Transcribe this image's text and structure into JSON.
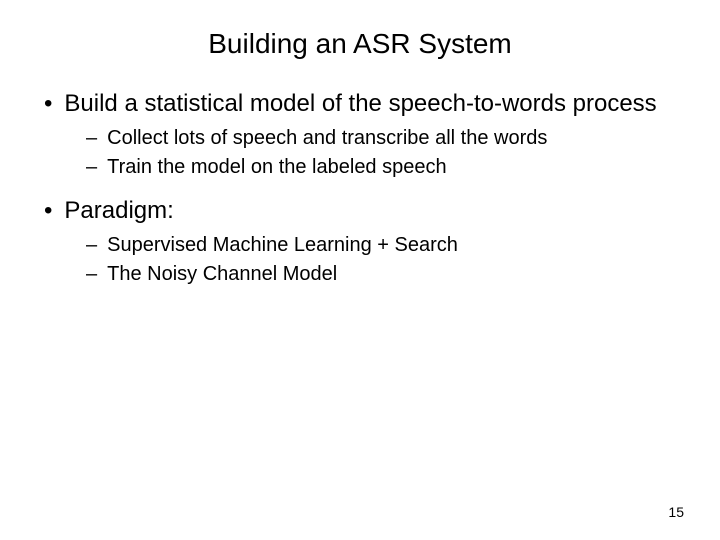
{
  "title": "Building an ASR System",
  "bullets": [
    {
      "text": "Build a statistical model of the speech-to-words process",
      "subs": [
        "Collect lots of speech and transcribe all the words",
        "Train the model on the labeled speech"
      ]
    },
    {
      "text": "Paradigm:",
      "subs": [
        "Supervised Machine Learning + Search",
        "The Noisy Channel Model"
      ]
    }
  ],
  "page_number": "15",
  "colors": {
    "background": "#ffffff",
    "text": "#000000"
  },
  "typography": {
    "title_fontsize": 28,
    "bullet_fontsize": 24,
    "sub_fontsize": 20,
    "pagenum_fontsize": 14,
    "font_family": "Arial"
  }
}
